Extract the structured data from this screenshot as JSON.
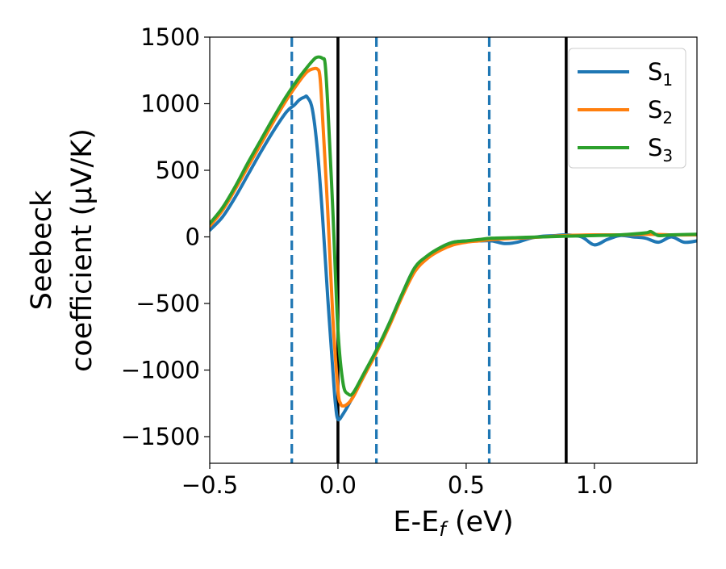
{
  "chart_data": {
    "type": "line",
    "title": "",
    "xlabel": "E-E",
    "xlabel_sub": "f",
    "xlabel_unit": " (eV)",
    "ylabel": [
      "Seebeck",
      "coefficient  (μV/K)"
    ],
    "xlim": [
      -0.5,
      1.4
    ],
    "ylim": [
      -1700,
      1500
    ],
    "xticks": [
      -0.5,
      0.0,
      0.5,
      1.0
    ],
    "xtick_labels": [
      "−0.5",
      "0.0",
      "0.5",
      "1.0"
    ],
    "yticks": [
      -1500,
      -1000,
      -500,
      0,
      500,
      1000,
      1500
    ],
    "ytick_labels": [
      "−1500",
      "−1000",
      "−500",
      "0",
      "500",
      "1000",
      "1500"
    ],
    "grid": false,
    "legend_position": "top-right",
    "vlines": [
      {
        "x": -0.18,
        "style": "dashed",
        "color": "#1f77b4"
      },
      {
        "x": 0.0,
        "style": "solid",
        "color": "#000000"
      },
      {
        "x": 0.15,
        "style": "dashed",
        "color": "#1f77b4"
      },
      {
        "x": 0.59,
        "style": "dashed",
        "color": "#1f77b4"
      },
      {
        "x": 0.89,
        "style": "solid",
        "color": "#000000"
      }
    ],
    "series": [
      {
        "name": "S",
        "sub": "1",
        "color": "#1f77b4",
        "x": [
          -0.5,
          -0.45,
          -0.4,
          -0.35,
          -0.3,
          -0.25,
          -0.2,
          -0.17,
          -0.15,
          -0.13,
          -0.12,
          -0.1,
          -0.08,
          -0.06,
          -0.04,
          -0.02,
          -0.01,
          0.0,
          0.02,
          0.05,
          0.1,
          0.15,
          0.2,
          0.25,
          0.3,
          0.35,
          0.4,
          0.45,
          0.5,
          0.55,
          0.6,
          0.65,
          0.7,
          0.75,
          0.8,
          0.85,
          0.89,
          0.95,
          1.0,
          1.05,
          1.1,
          1.15,
          1.2,
          1.25,
          1.3,
          1.35,
          1.4
        ],
        "y": [
          50,
          150,
          300,
          470,
          640,
          800,
          940,
          990,
          1030,
          1050,
          1050,
          960,
          650,
          150,
          -450,
          -1000,
          -1250,
          -1370,
          -1330,
          -1230,
          -1050,
          -860,
          -650,
          -430,
          -230,
          -150,
          -80,
          -40,
          -30,
          -30,
          -30,
          -50,
          -40,
          -10,
          5,
          10,
          15,
          0,
          -60,
          -20,
          10,
          0,
          -10,
          -40,
          0,
          -40,
          -30
        ]
      },
      {
        "name": "S",
        "sub": "2",
        "color": "#ff7f0e",
        "x": [
          -0.5,
          -0.45,
          -0.4,
          -0.35,
          -0.3,
          -0.25,
          -0.2,
          -0.15,
          -0.12,
          -0.1,
          -0.08,
          -0.07,
          -0.06,
          -0.04,
          -0.02,
          0.0,
          0.01,
          0.02,
          0.04,
          0.06,
          0.1,
          0.15,
          0.2,
          0.25,
          0.3,
          0.35,
          0.4,
          0.45,
          0.5,
          0.55,
          0.6,
          0.7,
          0.8,
          0.89,
          1.0,
          1.1,
          1.2,
          1.3,
          1.4
        ],
        "y": [
          80,
          200,
          360,
          530,
          700,
          870,
          1030,
          1170,
          1240,
          1260,
          1260,
          1200,
          900,
          200,
          -600,
          -1150,
          -1250,
          -1270,
          -1250,
          -1200,
          -1050,
          -870,
          -670,
          -450,
          -260,
          -160,
          -100,
          -60,
          -40,
          -30,
          -20,
          -10,
          0,
          10,
          15,
          15,
          20,
          15,
          15
        ]
      },
      {
        "name": "S",
        "sub": "3",
        "color": "#2ca02c",
        "x": [
          -0.5,
          -0.45,
          -0.4,
          -0.35,
          -0.3,
          -0.25,
          -0.2,
          -0.15,
          -0.1,
          -0.08,
          -0.06,
          -0.05,
          -0.04,
          -0.02,
          0.0,
          0.02,
          0.04,
          0.06,
          0.1,
          0.15,
          0.2,
          0.25,
          0.3,
          0.35,
          0.4,
          0.45,
          0.5,
          0.55,
          0.6,
          0.7,
          0.8,
          0.89,
          1.0,
          1.1,
          1.2,
          1.22,
          1.25,
          1.3,
          1.4
        ],
        "y": [
          100,
          220,
          380,
          560,
          730,
          900,
          1060,
          1200,
          1320,
          1350,
          1340,
          1300,
          1000,
          200,
          -700,
          -1100,
          -1180,
          -1170,
          -1030,
          -850,
          -650,
          -430,
          -230,
          -140,
          -80,
          -40,
          -30,
          -20,
          -10,
          -5,
          0,
          5,
          10,
          15,
          30,
          40,
          10,
          15,
          20
        ]
      }
    ]
  }
}
